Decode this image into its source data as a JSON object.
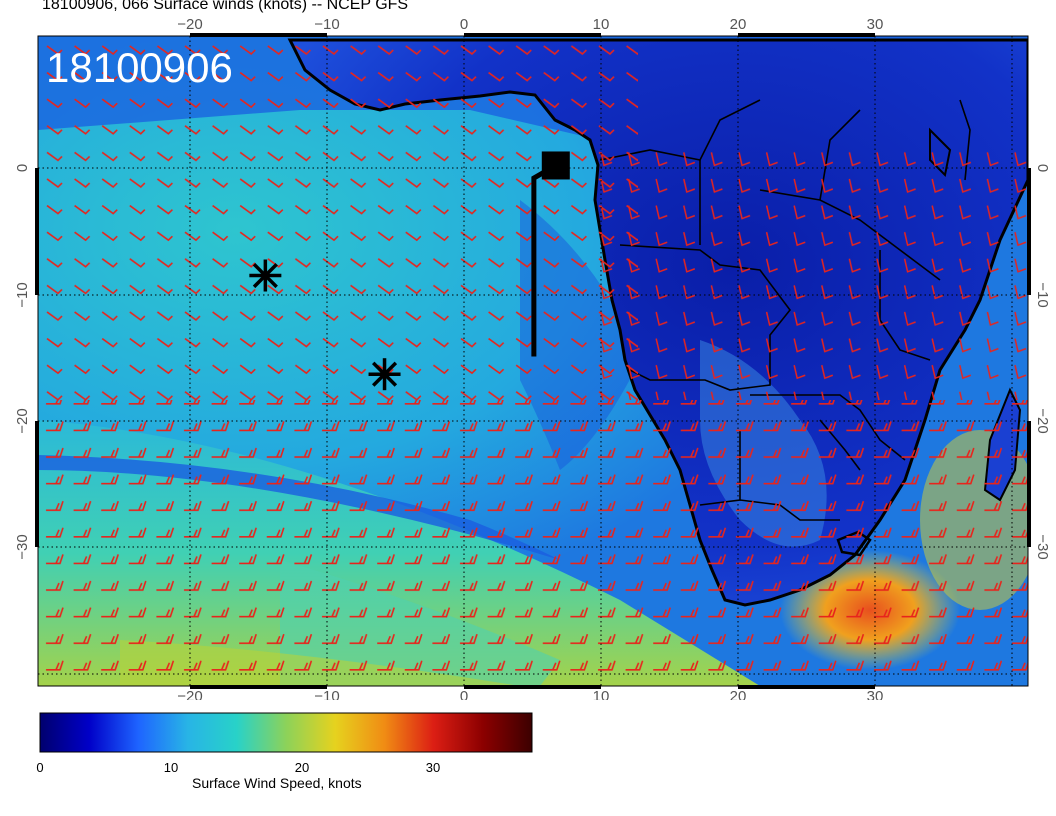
{
  "header": {
    "title": "18100906, 066 Surface winds (knots) -- NCEP GFS"
  },
  "map": {
    "datetime_stamp": "18100906",
    "lon_ticks_top": [
      "−20",
      "−10",
      "0",
      "10",
      "20",
      "30"
    ],
    "lon_ticks_bottom": [
      "−20",
      "−10",
      "0",
      "10",
      "20",
      "30"
    ],
    "lat_ticks_left": [
      "0",
      "−10",
      "−20",
      "−30"
    ],
    "lat_ticks_right": [
      "0",
      "−10",
      "−20",
      "−30"
    ],
    "markers": [
      {
        "type": "asterisk",
        "lon": -14.5,
        "lat": -8.5
      },
      {
        "type": "asterisk",
        "lon": -5.8,
        "lat": -16.3
      }
    ],
    "flight_track": {
      "square_lon": 6.7,
      "square_lat": 0.2,
      "points": [
        [
          6.7,
          0.2
        ],
        [
          5.1,
          -0.8
        ],
        [
          5.1,
          -14.9
        ]
      ]
    },
    "wind_barb_color": "#e8241c"
  },
  "colorbar": {
    "title": "Surface Wind Speed, knots",
    "tick_labels": [
      "0",
      "10",
      "20",
      "30"
    ],
    "range": [
      0,
      36
    ],
    "colors": [
      "#00006e",
      "#0000c8",
      "#1e64ff",
      "#28b4e6",
      "#28d2c8",
      "#8cd25a",
      "#e6d21e",
      "#f08c14",
      "#dc1e14",
      "#8c0000",
      "#3c0000"
    ]
  }
}
